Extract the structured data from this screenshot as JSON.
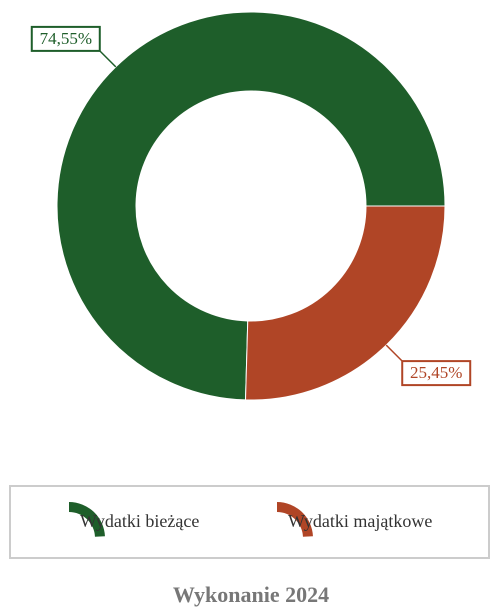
{
  "chart_data": {
    "type": "donut",
    "title": "Wykonanie 2024",
    "categories": [
      "Wydatki bieżące",
      "Wydatki majątkowe"
    ],
    "values": [
      74.55,
      25.45
    ],
    "value_labels": [
      "74,55%",
      "25,45%"
    ],
    "colors": [
      "#1e5e2a",
      "#b04526"
    ]
  }
}
